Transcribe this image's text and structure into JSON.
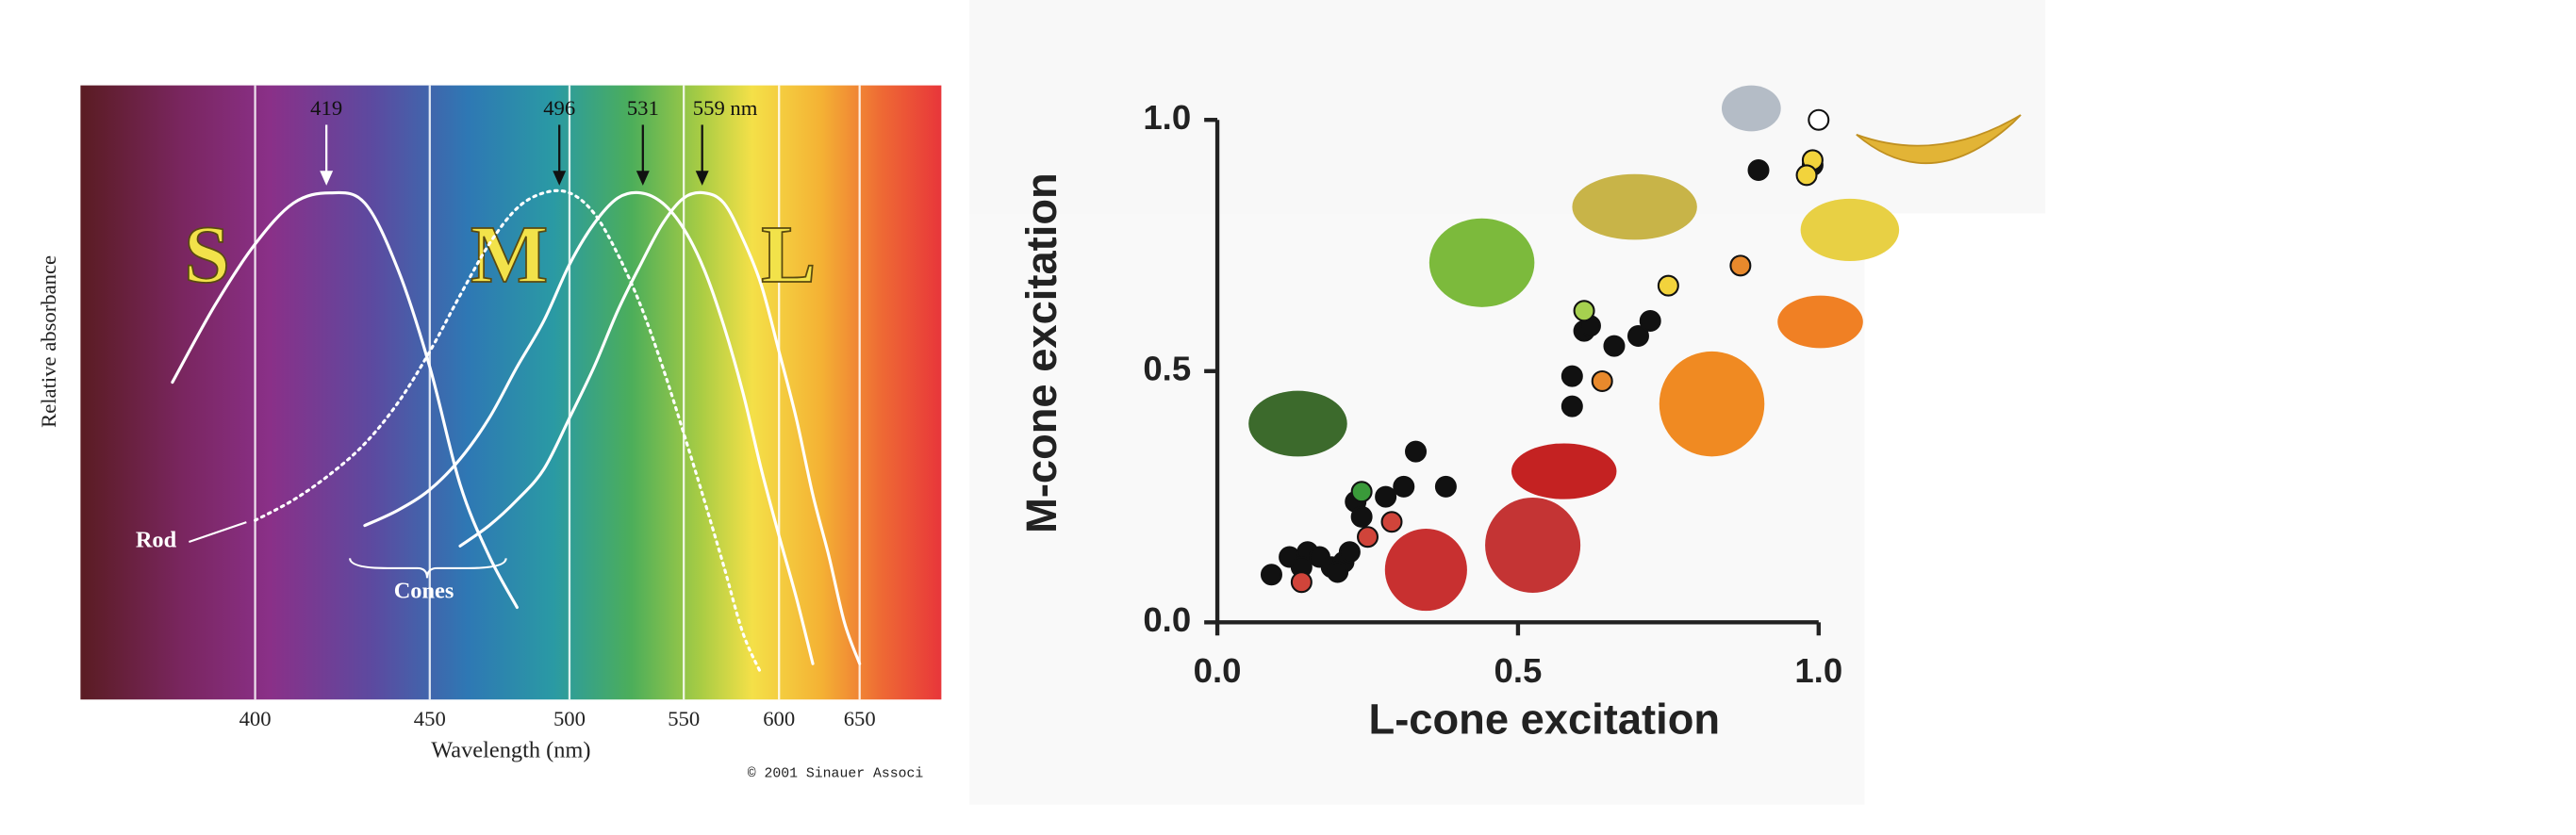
{
  "chart_data": [
    {
      "type": "line",
      "ylabel": "Relative absorbance",
      "xlabel": "Wavelength (nm)",
      "xscale": "reciprocal",
      "xlim": [
        360,
        710
      ],
      "ylim": [
        0,
        1.2
      ],
      "xticks": [
        400,
        450,
        500,
        550,
        600,
        650
      ],
      "grid": true,
      "x": [
        380,
        390,
        400,
        410,
        420,
        430,
        440,
        450,
        460,
        470,
        480,
        490,
        500,
        510,
        520,
        530,
        540,
        550,
        560,
        570,
        580,
        590,
        600,
        610,
        620,
        630,
        640,
        650
      ],
      "series": [
        {
          "name": "S",
          "color": "#ffffff",
          "line_style": "solid",
          "values": [
            0.62,
            0.77,
            0.89,
            0.97,
            0.99,
            0.97,
            0.84,
            0.65,
            0.42,
            0.28,
            0.18,
            null,
            null,
            null,
            null,
            null,
            null,
            null,
            null,
            null,
            null,
            null,
            null,
            null,
            null,
            null,
            null,
            null
          ]
        },
        {
          "name": "M",
          "color": "#ffffff",
          "line_style": "solid",
          "values": [
            null,
            null,
            null,
            null,
            null,
            0.34,
            0.37,
            0.41,
            0.47,
            0.55,
            0.65,
            0.74,
            0.85,
            0.93,
            0.98,
            0.99,
            0.97,
            0.92,
            0.84,
            0.73,
            0.6,
            0.45,
            0.32,
            0.2,
            0.07,
            null,
            null,
            null
          ]
        },
        {
          "name": "L",
          "color": "#ffffff",
          "line_style": "solid",
          "values": [
            null,
            null,
            null,
            null,
            null,
            null,
            null,
            null,
            0.3,
            0.34,
            0.39,
            0.45,
            0.55,
            0.65,
            0.76,
            0.85,
            0.93,
            0.98,
            0.99,
            0.97,
            0.9,
            0.81,
            0.68,
            0.55,
            0.4,
            0.28,
            0.15,
            0.07
          ]
        },
        {
          "name": "Rod",
          "color": "#ffffff",
          "line_style": "dotted",
          "values": [
            null,
            null,
            0.35,
            0.39,
            0.44,
            0.5,
            0.58,
            0.68,
            0.79,
            0.89,
            0.96,
            0.99,
            0.99,
            0.95,
            0.87,
            0.77,
            0.65,
            0.52,
            0.39,
            0.26,
            0.13,
            0.05,
            null,
            null,
            null,
            null,
            null,
            null
          ]
        }
      ],
      "annotations": [
        {
          "text": "419",
          "x": 419
        },
        {
          "text": "496",
          "x": 496
        },
        {
          "text": "531",
          "x": 531
        },
        {
          "text": "559 nm",
          "x": 559
        }
      ],
      "brace_label": "Cones",
      "credit": "© 2001 Sinauer Associ"
    },
    {
      "type": "scatter",
      "xlabel": "L-cone excitation",
      "ylabel": "M-cone excitation",
      "xlim": [
        0,
        1
      ],
      "ylim": [
        0,
        1
      ],
      "xticks": [
        {
          "value": 0,
          "label": "0.0"
        },
        {
          "value": 0.5,
          "label": "0.5"
        },
        {
          "value": 1,
          "label": "1.0"
        }
      ],
      "yticks": [
        {
          "value": 0,
          "label": "0.0"
        },
        {
          "value": 0.5,
          "label": "0.5"
        },
        {
          "value": 1,
          "label": "1.0"
        }
      ],
      "series": [
        {
          "color": "#111111",
          "x": [
            0.09,
            0.12,
            0.15,
            0.17,
            0.19,
            0.21,
            0.22,
            0.2,
            0.14,
            0.23,
            0.24,
            0.28,
            0.31,
            0.33,
            0.38,
            0.59,
            0.59,
            0.61,
            0.62,
            0.66,
            0.7,
            0.72,
            0.9,
            0.99
          ],
          "values": [
            0.095,
            0.13,
            0.14,
            0.13,
            0.11,
            0.12,
            0.14,
            0.1,
            0.11,
            0.24,
            0.21,
            0.25,
            0.27,
            0.34,
            0.27,
            0.43,
            0.49,
            0.58,
            0.59,
            0.55,
            0.57,
            0.6,
            0.9,
            0.91
          ]
        },
        {
          "color": "#3a9a3a",
          "x": [
            0.24
          ],
          "values": [
            0.26
          ]
        },
        {
          "color": "#d0443a",
          "x": [
            0.25,
            0.29,
            0.14
          ],
          "values": [
            0.17,
            0.2,
            0.08
          ]
        },
        {
          "color": "#a6d04f",
          "x": [
            0.61
          ],
          "values": [
            0.62
          ]
        },
        {
          "color": "#f2d33c",
          "x": [
            0.75,
            0.99,
            0.98
          ],
          "values": [
            0.67,
            0.92,
            0.89
          ]
        },
        {
          "color": "#e8892c",
          "x": [
            0.64,
            0.87
          ],
          "values": [
            0.48,
            0.71
          ]
        },
        {
          "color": "#ffffff",
          "x": [
            1
          ],
          "values": [
            1
          ]
        }
      ]
    }
  ]
}
